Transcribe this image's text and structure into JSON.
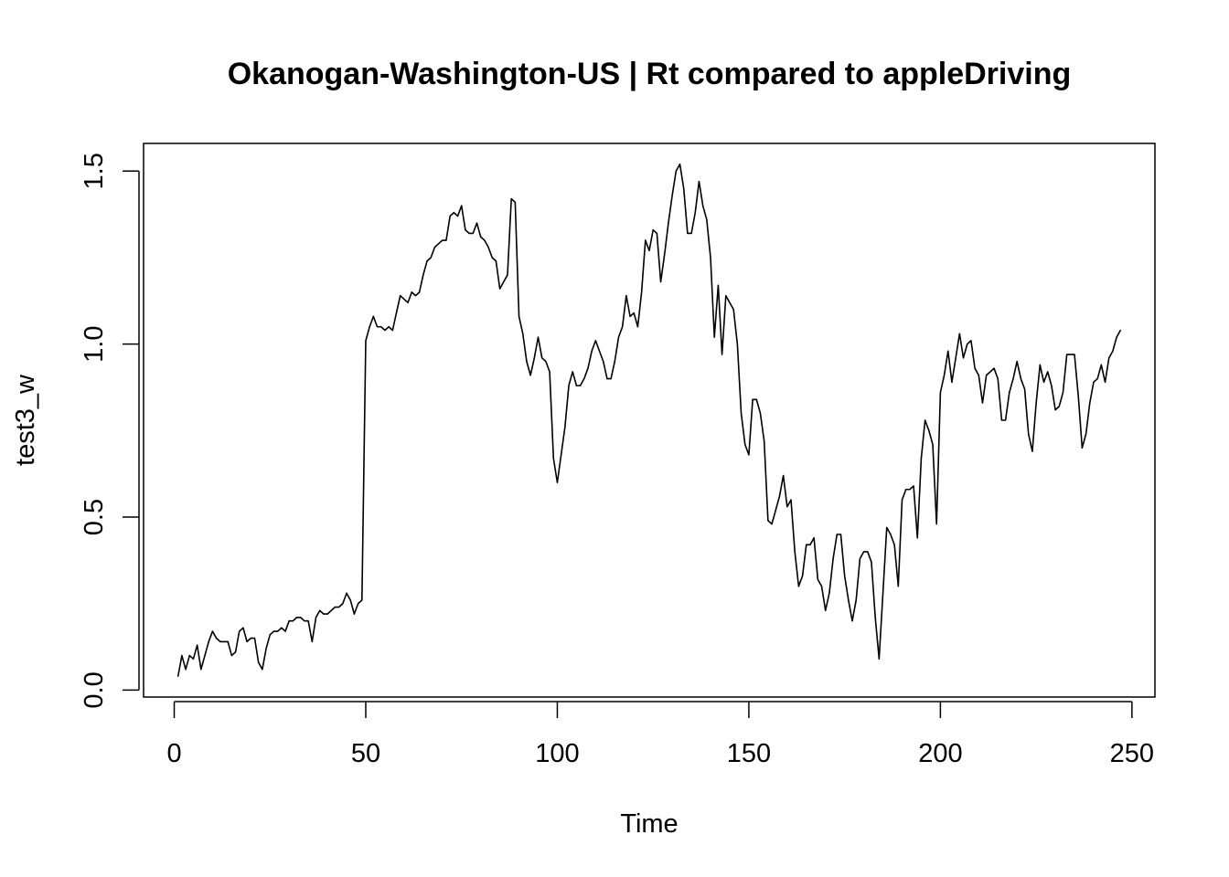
{
  "chart_data": {
    "type": "line",
    "title": "Okanogan-Washington-US | Rt compared to appleDriving",
    "xlabel": "Time",
    "ylabel": "test3_w",
    "xlim": [
      -8,
      256
    ],
    "ylim": [
      -0.02,
      1.58
    ],
    "x_ticks": [
      0,
      50,
      100,
      150,
      200,
      250
    ],
    "y_ticks": [
      0.0,
      0.5,
      1.0,
      1.5
    ],
    "x_tick_labels": [
      "0",
      "50",
      "100",
      "150",
      "200",
      "250"
    ],
    "y_tick_labels": [
      "0.0",
      "0.5",
      "1.0",
      "1.5"
    ],
    "grid": false,
    "legend": "none",
    "line_color": "#000000",
    "series": [
      {
        "x_start": 1,
        "values": [
          0.04,
          0.1,
          0.06,
          0.1,
          0.09,
          0.13,
          0.06,
          0.1,
          0.14,
          0.17,
          0.15,
          0.14,
          0.14,
          0.14,
          0.1,
          0.11,
          0.17,
          0.18,
          0.14,
          0.15,
          0.15,
          0.08,
          0.06,
          0.12,
          0.16,
          0.17,
          0.17,
          0.18,
          0.17,
          0.2,
          0.2,
          0.21,
          0.21,
          0.2,
          0.2,
          0.14,
          0.21,
          0.23,
          0.22,
          0.22,
          0.23,
          0.24,
          0.24,
          0.25,
          0.28,
          0.26,
          0.22,
          0.25,
          0.26,
          1.01,
          1.05,
          1.08,
          1.05,
          1.05,
          1.04,
          1.05,
          1.04,
          1.09,
          1.14,
          1.13,
          1.12,
          1.15,
          1.14,
          1.15,
          1.2,
          1.24,
          1.25,
          1.28,
          1.29,
          1.3,
          1.3,
          1.37,
          1.38,
          1.37,
          1.4,
          1.33,
          1.32,
          1.32,
          1.35,
          1.31,
          1.3,
          1.28,
          1.25,
          1.24,
          1.16,
          1.18,
          1.2,
          1.42,
          1.41,
          1.08,
          1.03,
          0.95,
          0.91,
          0.96,
          1.02,
          0.96,
          0.95,
          0.92,
          0.67,
          0.6,
          0.68,
          0.76,
          0.88,
          0.92,
          0.88,
          0.88,
          0.9,
          0.93,
          0.98,
          1.01,
          0.98,
          0.95,
          0.9,
          0.9,
          0.95,
          1.02,
          1.05,
          1.14,
          1.08,
          1.09,
          1.05,
          1.15,
          1.3,
          1.27,
          1.33,
          1.32,
          1.18,
          1.26,
          1.35,
          1.43,
          1.5,
          1.52,
          1.45,
          1.32,
          1.32,
          1.38,
          1.47,
          1.4,
          1.36,
          1.25,
          1.02,
          1.17,
          0.97,
          1.14,
          1.12,
          1.1,
          1.0,
          0.8,
          0.71,
          0.68,
          0.84,
          0.84,
          0.8,
          0.72,
          0.49,
          0.48,
          0.52,
          0.56,
          0.62,
          0.53,
          0.55,
          0.4,
          0.3,
          0.33,
          0.42,
          0.42,
          0.44,
          0.32,
          0.3,
          0.23,
          0.28,
          0.38,
          0.45,
          0.45,
          0.33,
          0.26,
          0.2,
          0.26,
          0.38,
          0.4,
          0.4,
          0.37,
          0.21,
          0.09,
          0.28,
          0.47,
          0.45,
          0.42,
          0.3,
          0.55,
          0.58,
          0.58,
          0.59,
          0.44,
          0.67,
          0.78,
          0.75,
          0.71,
          0.48,
          0.86,
          0.91,
          0.98,
          0.89,
          0.96,
          1.03,
          0.96,
          1.0,
          1.01,
          0.93,
          0.91,
          0.83,
          0.91,
          0.92,
          0.93,
          0.9,
          0.78,
          0.78,
          0.86,
          0.9,
          0.95,
          0.9,
          0.87,
          0.74,
          0.69,
          0.83,
          0.94,
          0.89,
          0.92,
          0.88,
          0.81,
          0.82,
          0.86,
          0.97,
          0.97,
          0.97,
          0.85,
          0.7,
          0.74,
          0.83,
          0.89,
          0.9,
          0.94,
          0.89,
          0.96,
          0.98,
          1.02,
          1.04
        ]
      }
    ]
  }
}
